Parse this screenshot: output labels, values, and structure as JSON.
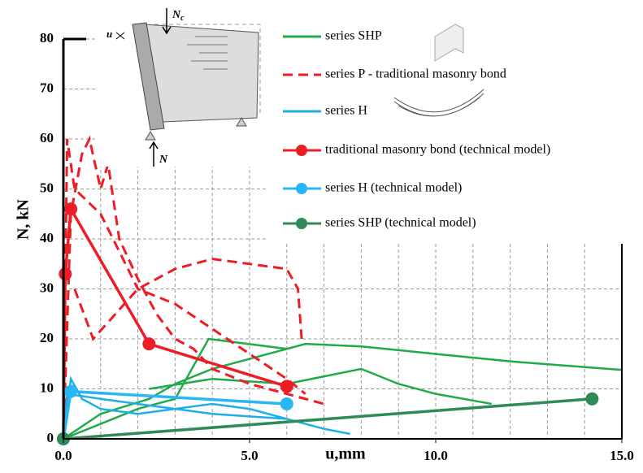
{
  "chart_data": {
    "type": "line",
    "x_label": "u,mm",
    "y_label": "N, kN",
    "diagram": {
      "displacement": "u",
      "top_force": "N",
      "top_force_subscript": "c",
      "bottom_force": "N"
    },
    "xlim": [
      0,
      15
    ],
    "ylim": [
      0,
      80
    ],
    "xticks": [
      {
        "value": 0,
        "label": "0.0"
      },
      {
        "value": 5,
        "label": "5.0"
      },
      {
        "value": 10,
        "label": "10.0"
      },
      {
        "value": 15,
        "label": "15.0"
      }
    ],
    "yticks": [
      0,
      10,
      20,
      30,
      40,
      50,
      60,
      70,
      80
    ],
    "xgrid": [
      1,
      2,
      3,
      4,
      5,
      6,
      7,
      8,
      9,
      10,
      11,
      12,
      13,
      14
    ],
    "grid": true,
    "series": [
      {
        "name": "series SHP",
        "color": "#1fab4a",
        "dashed": false,
        "markers": false,
        "x": [
          0,
          1,
          2,
          3,
          3.9,
          6,
          null,
          0,
          1,
          2.3,
          3,
          4,
          5,
          6,
          6.5,
          8,
          10,
          12,
          15,
          null,
          2.3,
          4,
          6,
          7,
          8,
          9,
          10,
          11.5
        ],
        "values": [
          0,
          3,
          6,
          8,
          20,
          18,
          null,
          0,
          5,
          8,
          11,
          14,
          16,
          18,
          19,
          18.5,
          17,
          15.5,
          13.8,
          null,
          10,
          12,
          11,
          12.5,
          14,
          11,
          9,
          7
        ]
      },
      {
        "name": "series P - traditional masonry bond",
        "color": "#ee1c25",
        "dashed": true,
        "markers": false,
        "x": [
          0,
          0.2,
          0.5,
          0.7,
          1,
          1.2,
          1.5,
          2,
          2.5,
          3,
          3.5,
          4,
          5,
          6,
          7,
          null,
          0,
          0.1,
          0.3,
          1,
          2,
          3,
          4,
          5,
          6,
          6.5,
          null,
          0.3,
          0.8,
          2,
          3,
          4,
          5,
          6,
          6.3,
          6.4
        ],
        "values": [
          0,
          45,
          57,
          60,
          50,
          55,
          40,
          32,
          25,
          20,
          18,
          14,
          11,
          9,
          7,
          null,
          0,
          60,
          50,
          45,
          30,
          27,
          22,
          17,
          12,
          9,
          null,
          30,
          20,
          30,
          34,
          36,
          35,
          34,
          30,
          20
        ]
      },
      {
        "name": "series H",
        "color": "#1eaee8",
        "dashed": false,
        "markers": false,
        "x": [
          0,
          0.2,
          0.5,
          1,
          2,
          3,
          4,
          5,
          6,
          7,
          7.7,
          null,
          0,
          0.1,
          1,
          2,
          3,
          4,
          5,
          6
        ],
        "values": [
          0,
          12,
          8,
          6,
          5,
          6,
          7,
          6,
          4,
          2,
          1,
          null,
          0,
          9,
          8,
          7,
          6,
          5,
          4.5,
          4
        ]
      },
      {
        "name": "traditional masonry bond (technical model)",
        "color": "#ee1c25",
        "dashed": false,
        "markers": true,
        "x": [
          0,
          0.05,
          0.2,
          2.3,
          6
        ],
        "values": [
          0,
          33,
          46,
          19,
          10.5
        ]
      },
      {
        "name": "series H (technical model)",
        "color": "#29b6f6",
        "dashed": false,
        "markers": true,
        "x": [
          0,
          0.2,
          6
        ],
        "values": [
          0,
          9.5,
          7
        ]
      },
      {
        "name": "series SHP (technical model)",
        "color": "#2e8b57",
        "dashed": false,
        "markers": true,
        "x": [
          0,
          14.2
        ],
        "values": [
          0,
          8
        ]
      }
    ]
  }
}
